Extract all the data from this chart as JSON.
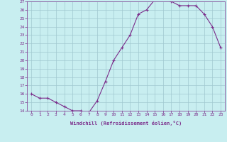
{
  "x": [
    0,
    1,
    2,
    3,
    4,
    5,
    6,
    7,
    8,
    9,
    10,
    11,
    12,
    13,
    14,
    15,
    16,
    17,
    18,
    19,
    20,
    21,
    22,
    23
  ],
  "y": [
    16,
    15.5,
    15.5,
    15,
    14.5,
    14,
    14,
    13.8,
    15.2,
    17.5,
    20,
    21.5,
    23,
    25.5,
    26,
    27.2,
    27.4,
    27,
    26.5,
    26.5,
    26.5,
    25.5,
    24,
    21.5
  ],
  "line_color": "#7b2d8b",
  "marker": "+",
  "marker_size": 3,
  "linewidth": 0.8,
  "markeredgewidth": 0.8,
  "background_color": "#c8eef0",
  "grid_color": "#a0c8d0",
  "xlabel": "Windchill (Refroidissement éolien,°C)",
  "xlim_min": -0.5,
  "xlim_max": 23.5,
  "ylim_min": 14,
  "ylim_max": 27,
  "yticks": [
    14,
    15,
    16,
    17,
    18,
    19,
    20,
    21,
    22,
    23,
    24,
    25,
    26,
    27
  ],
  "xtick_labels": [
    "0",
    "1",
    "2",
    "3",
    "4",
    "5",
    "6",
    "7",
    "8",
    "9",
    "10",
    "11",
    "12",
    "13",
    "14",
    "15",
    "16",
    "17",
    "18",
    "19",
    "20",
    "21",
    "22",
    "23"
  ],
  "tick_color": "#7b2d8b",
  "label_color": "#7b2d8b",
  "font_family": "monospace"
}
